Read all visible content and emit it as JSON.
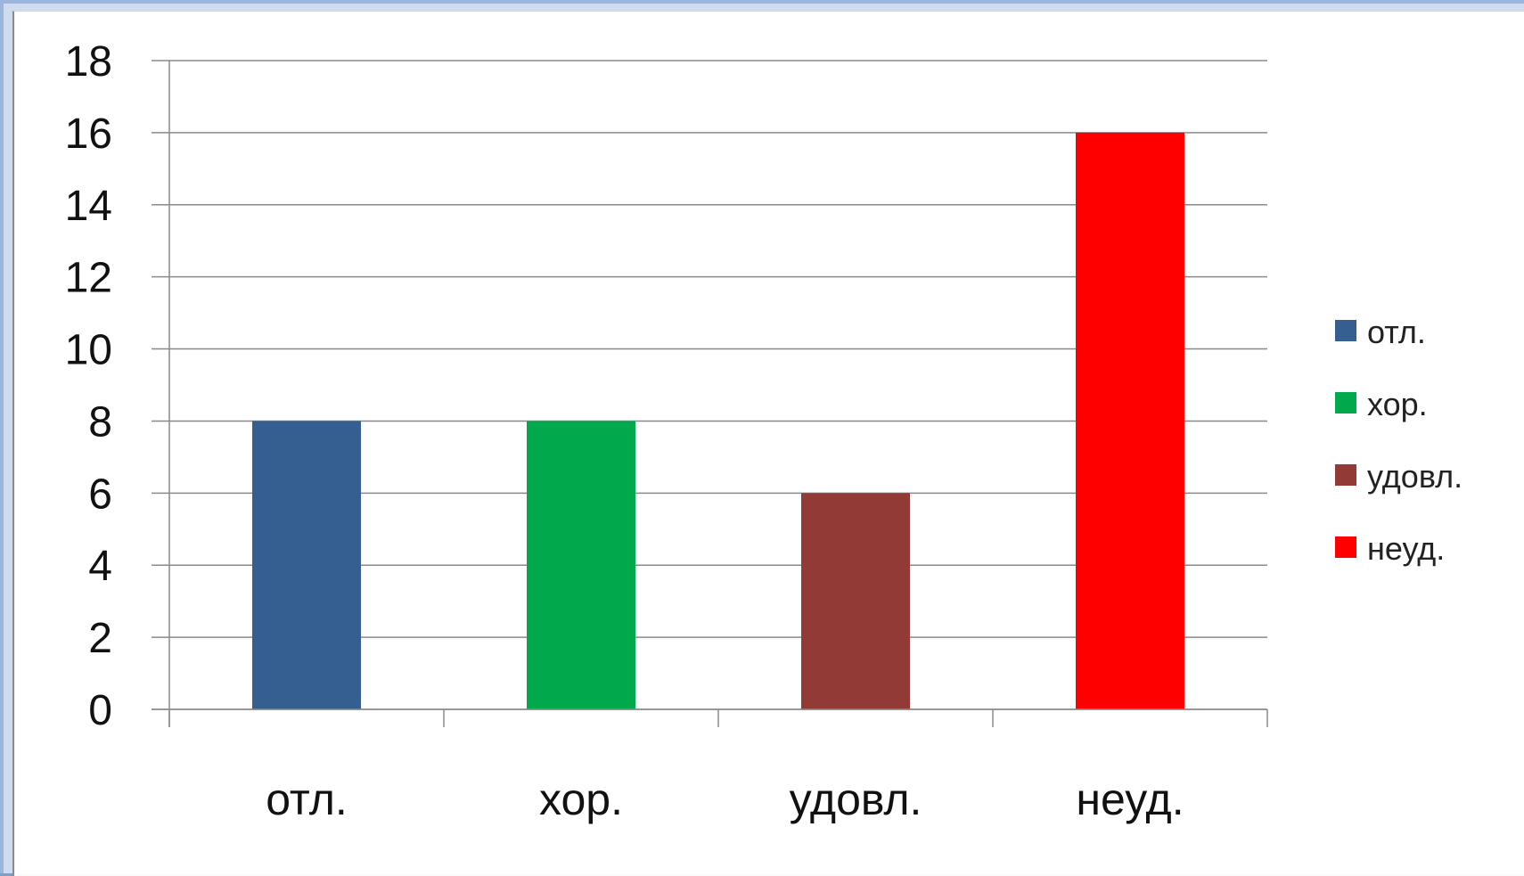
{
  "chart_data": {
    "type": "bar",
    "title": "",
    "xlabel": "",
    "ylabel": "",
    "categories": [
      "отл.",
      "хор.",
      "удовл.",
      "неуд."
    ],
    "series": [
      {
        "values": [
          8,
          8,
          6,
          16
        ],
        "colors": [
          "#355f91",
          "#00aa4c",
          "#923a35",
          "#ff0000"
        ]
      }
    ],
    "ylim": [
      0,
      18
    ],
    "yticks": [
      "0",
      "2",
      "4",
      "6",
      "8",
      "10",
      "12",
      "14",
      "16",
      "18"
    ],
    "grid": true,
    "legend": {
      "placement": "right",
      "items": [
        {
          "label": "отл.",
          "color": "#355f91"
        },
        {
          "label": "хор.",
          "color": "#00aa4c"
        },
        {
          "label": "удовл.",
          "color": "#923a35"
        },
        {
          "label": "неуд.",
          "color": "#ff0000"
        }
      ]
    }
  }
}
